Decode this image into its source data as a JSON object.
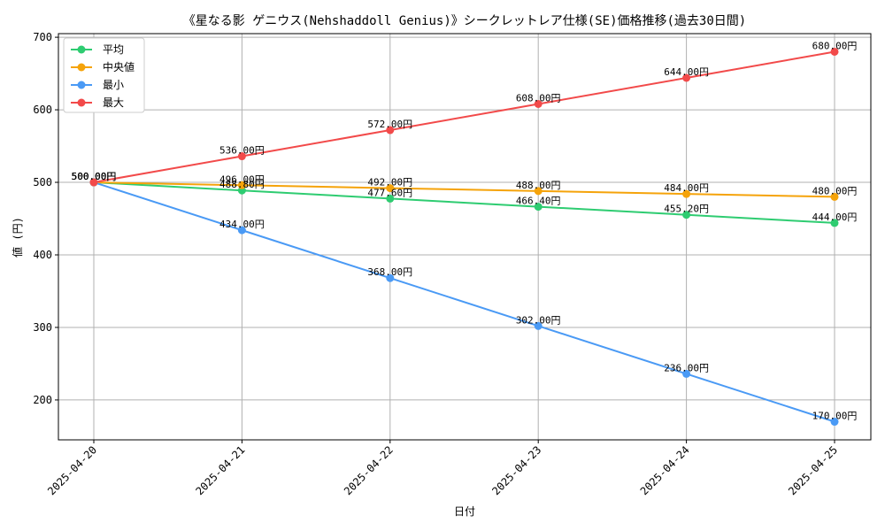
{
  "chart_data": {
    "type": "line",
    "title": "《星なる影 ゲニウス(Nehshaddoll Genius)》シークレットレア仕様(SE)価格推移(過去30日間)",
    "xlabel": "日付",
    "ylabel": "値 (円)",
    "x": [
      "2025-04-20",
      "2025-04-21",
      "2025-04-22",
      "2025-04-23",
      "2025-04-24",
      "2025-04-25"
    ],
    "yticks": [
      200,
      300,
      400,
      500,
      600,
      700
    ],
    "ylim": [
      145,
      705
    ],
    "grid": true,
    "legend_position": "top-left",
    "series": [
      {
        "name": "平均",
        "color": "#2ecc71",
        "values": [
          500.0,
          488.8,
          477.6,
          466.4,
          455.2,
          444.0
        ],
        "labels": [
          "500.00円",
          "488.80円",
          "477.60円",
          "466.40円",
          "455.20円",
          "444.00円"
        ]
      },
      {
        "name": "中央値",
        "color": "#f5a30a",
        "values": [
          500.0,
          496.0,
          492.0,
          488.0,
          484.0,
          480.0
        ],
        "labels": [
          "500.00円",
          "496.00円",
          "492.00円",
          "488.00円",
          "484.00円",
          "480.00円"
        ]
      },
      {
        "name": "最小",
        "color": "#4a9af5",
        "values": [
          500.0,
          434.0,
          368.0,
          302.0,
          236.0,
          170.0
        ],
        "labels": [
          "500.00円",
          "434.00円",
          "368.00円",
          "302.00円",
          "236.00円",
          "170.00円"
        ]
      },
      {
        "name": "最大",
        "color": "#f24a4a",
        "values": [
          500.0,
          536.0,
          572.0,
          608.0,
          644.0,
          680.0
        ],
        "labels": [
          "500.00円",
          "536.00円",
          "572.00円",
          "608.00円",
          "644.00円",
          "680.00円"
        ]
      }
    ]
  }
}
